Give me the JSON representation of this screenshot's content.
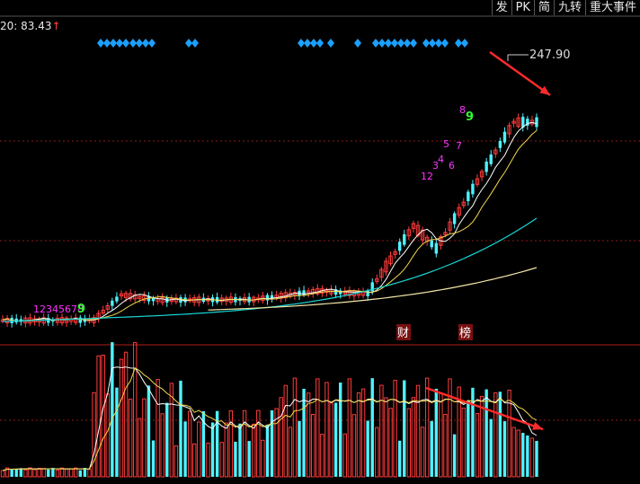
{
  "toolbar": {
    "buttons": [
      "发",
      "PK",
      "简",
      "九转",
      "重大事件"
    ]
  },
  "ma_label": {
    "text": "20: 83.43",
    "arrow": "↑"
  },
  "price_panel": {
    "high_label": "247.90",
    "event_tags": [
      "财",
      "榜"
    ],
    "nine_turn_seq_left": {
      "digits": "12345678",
      "last": "9"
    },
    "nine_turn_seq_right": [
      {
        "text": "1",
        "color": "#ff33ff"
      },
      {
        "text": "2",
        "color": "#ff33ff"
      },
      {
        "text": "3",
        "color": "#ff33ff"
      },
      {
        "text": "4",
        "color": "#ff33ff"
      },
      {
        "text": "5",
        "color": "#ff33ff"
      },
      {
        "text": "6",
        "color": "#ff33ff"
      },
      {
        "text": "7",
        "color": "#ff33ff"
      },
      {
        "text": "8",
        "color": "#ff33ff"
      },
      {
        "text": "9",
        "color": "#33ff33"
      }
    ]
  },
  "colors": {
    "up": "#ff3b3b",
    "down": "#4ff2ff",
    "ma5": "#ffffff",
    "ma10": "#f2d84b",
    "ma_mid": "#19d6d6",
    "ma_long": "#f2e6a6",
    "grid": "#8b1a1a",
    "diamond": "#1aa0ff",
    "trend_arrow": "#ff2a2a"
  }
}
